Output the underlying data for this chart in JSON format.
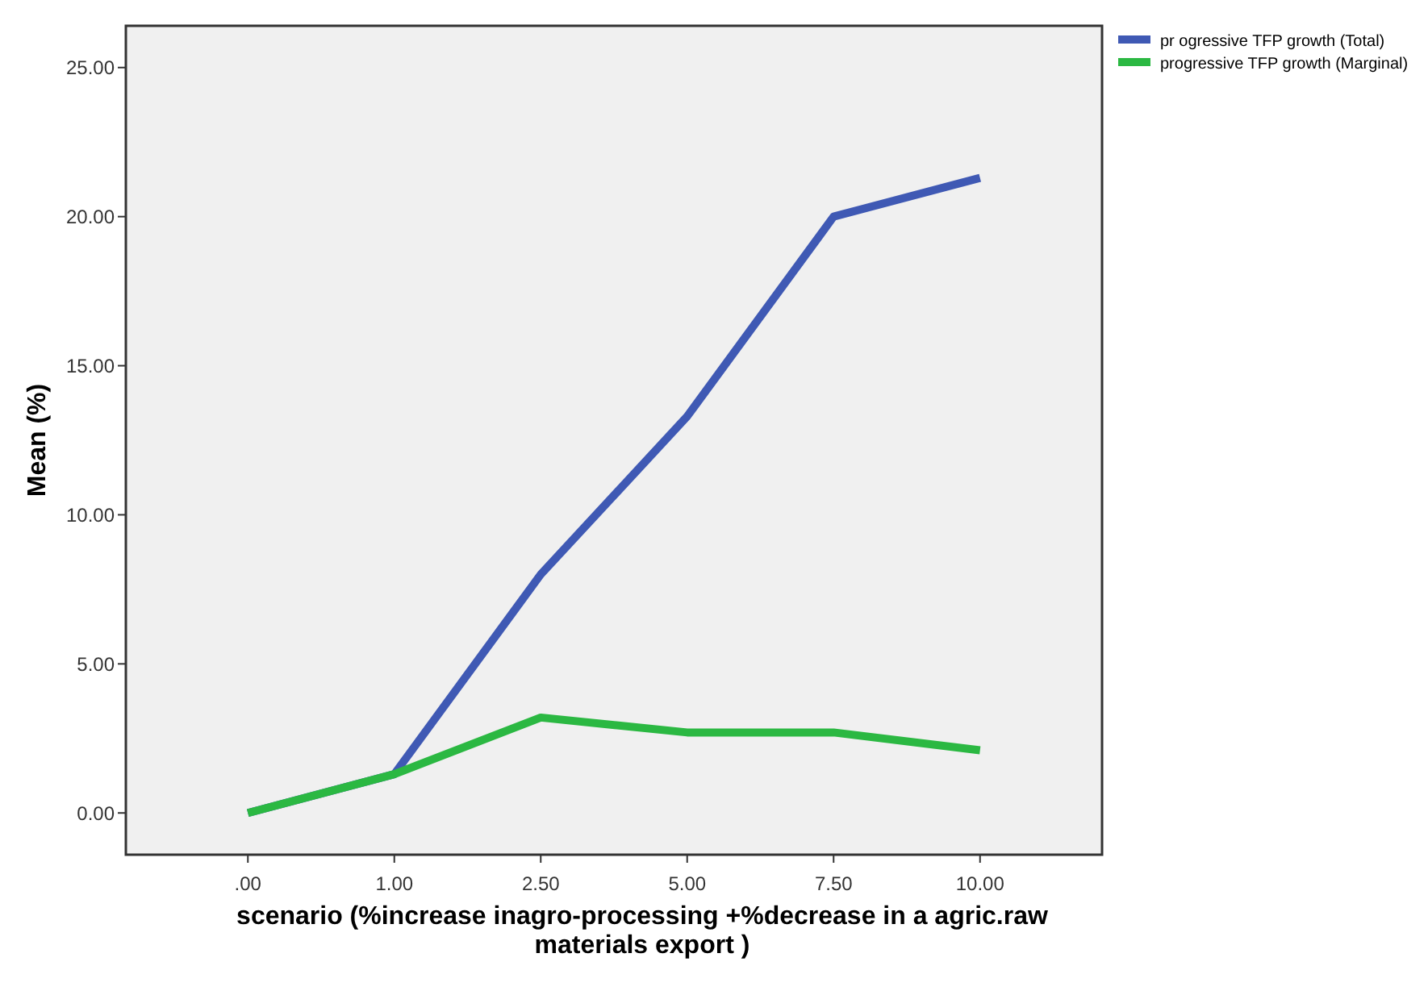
{
  "chart_data": {
    "type": "line",
    "xlabel": "scenario (%increase inagro-processing +%decrease in a agric.raw materials export )",
    "ylabel": "Mean (%)",
    "categories": [
      ".00",
      "1.00",
      "2.50",
      "5.00",
      "7.50",
      "10.00"
    ],
    "series": [
      {
        "name": "pr ogressive TFP growth (Total)",
        "color": "#3f59b4",
        "values": [
          0,
          1.3,
          8.0,
          13.3,
          20.0,
          21.3
        ]
      },
      {
        "name": "progressive TFP growth (Marginal)",
        "color": "#2bb842",
        "values": [
          0,
          1.3,
          3.2,
          2.7,
          2.7,
          2.1
        ]
      }
    ],
    "ylim": [
      -1.4,
      26.4
    ],
    "yticks": [
      {
        "value": 0,
        "label": "0.00"
      },
      {
        "value": 5,
        "label": "5.00"
      },
      {
        "value": 10,
        "label": "10.00"
      },
      {
        "value": 15,
        "label": "15.00"
      },
      {
        "value": 20,
        "label": "20.00"
      },
      {
        "value": 25,
        "label": "25.00"
      }
    ],
    "grid": false,
    "legend": "top right",
    "marker": "none",
    "line_style": "solid"
  }
}
